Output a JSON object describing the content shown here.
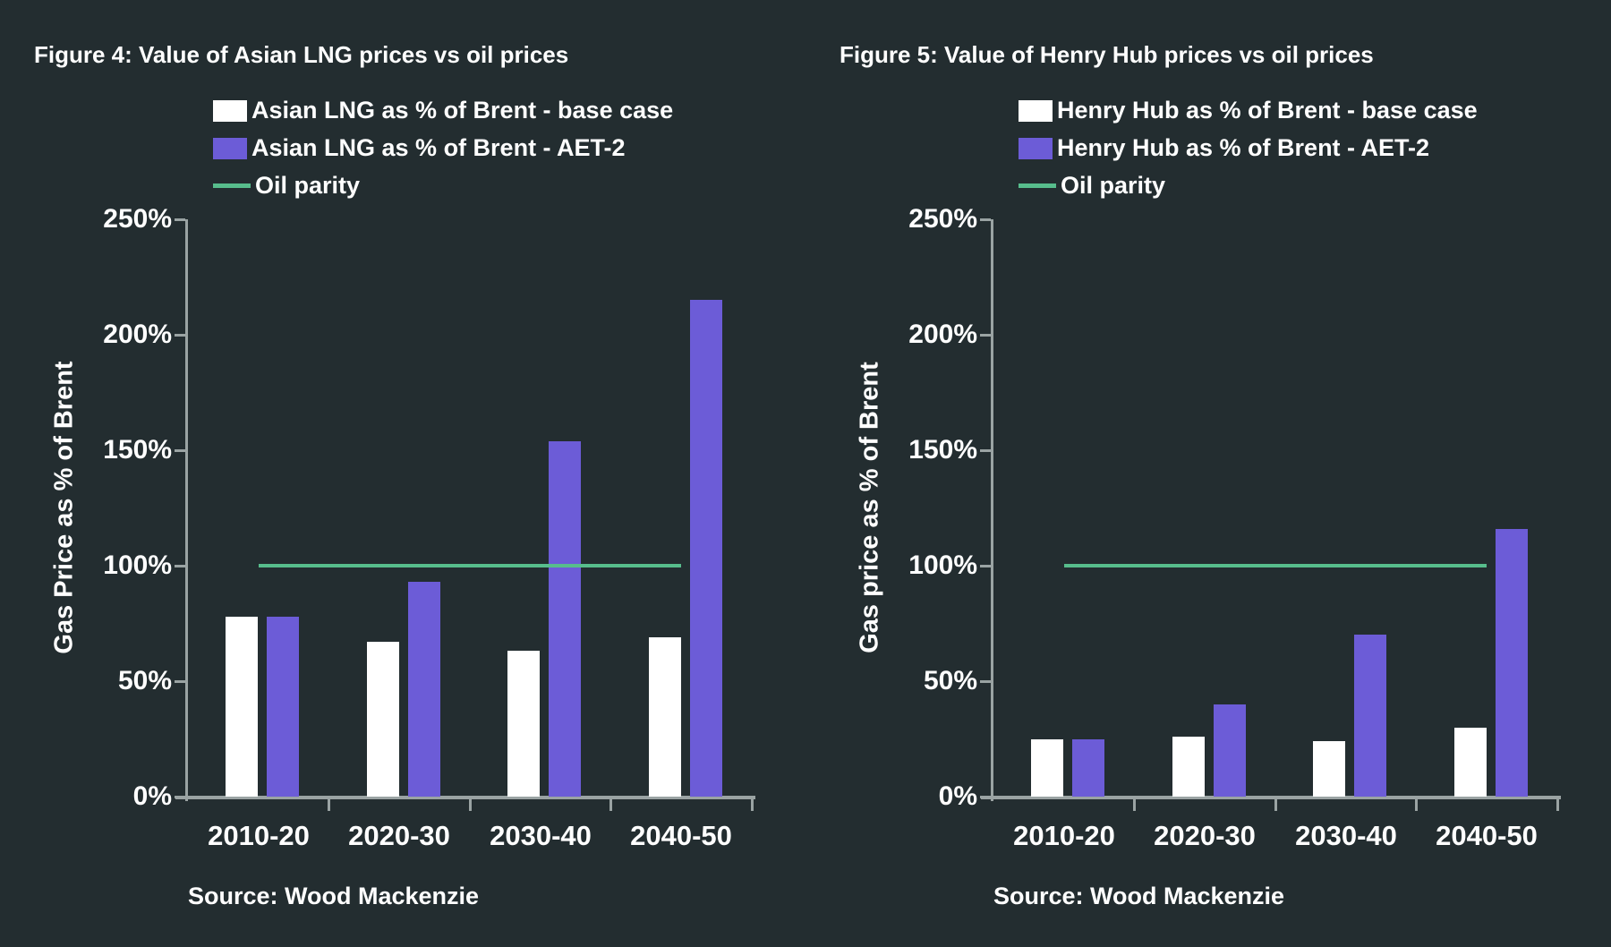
{
  "background_color": "#232d30",
  "colors": {
    "base_bar": "#ffffff",
    "aet2_bar": "#6c5cd7",
    "parity_line": "#57bd8c",
    "axis": "#9aa3a3",
    "text": "#ffffff"
  },
  "chart_data": [
    {
      "type": "bar",
      "figure_label": "Figure 4: Value of Asian LNG prices vs oil prices",
      "ylabel": "Gas Price as % of Brent",
      "categories": [
        "2010-20",
        "2020-30",
        "2030-40",
        "2040-50"
      ],
      "series": [
        {
          "name": "Asian LNG as % of Brent - base case",
          "color": "#ffffff",
          "values": [
            78,
            67,
            63,
            69
          ]
        },
        {
          "name": "Asian LNG as % of Brent - AET-2",
          "color": "#6c5cd7",
          "values": [
            78,
            93,
            154,
            215
          ]
        }
      ],
      "line_series": {
        "name": "Oil parity",
        "value": 100,
        "color": "#57bd8c"
      },
      "ylim": [
        0,
        250
      ],
      "ytick_labels": [
        "250%",
        "200%",
        "150%",
        "100%",
        "50%",
        "0%"
      ],
      "grid": false,
      "legend_position": "top",
      "source": "Source: Wood Mackenzie"
    },
    {
      "type": "bar",
      "figure_label": "Figure 5: Value of Henry Hub prices vs oil prices",
      "ylabel": "Gas price as % of Brent",
      "categories": [
        "2010-20",
        "2020-30",
        "2030-40",
        "2040-50"
      ],
      "series": [
        {
          "name": "Henry Hub as % of Brent - base case",
          "color": "#ffffff",
          "values": [
            25,
            26,
            24,
            30
          ]
        },
        {
          "name": "Henry Hub as % of Brent - AET-2",
          "color": "#6c5cd7",
          "values": [
            25,
            40,
            70,
            116
          ]
        }
      ],
      "line_series": {
        "name": "Oil parity",
        "value": 100,
        "color": "#57bd8c"
      },
      "ylim": [
        0,
        250
      ],
      "ytick_labels": [
        "250%",
        "200%",
        "150%",
        "100%",
        "50%",
        "0%"
      ],
      "grid": false,
      "legend_position": "top",
      "source": "Source: Wood Mackenzie"
    }
  ]
}
